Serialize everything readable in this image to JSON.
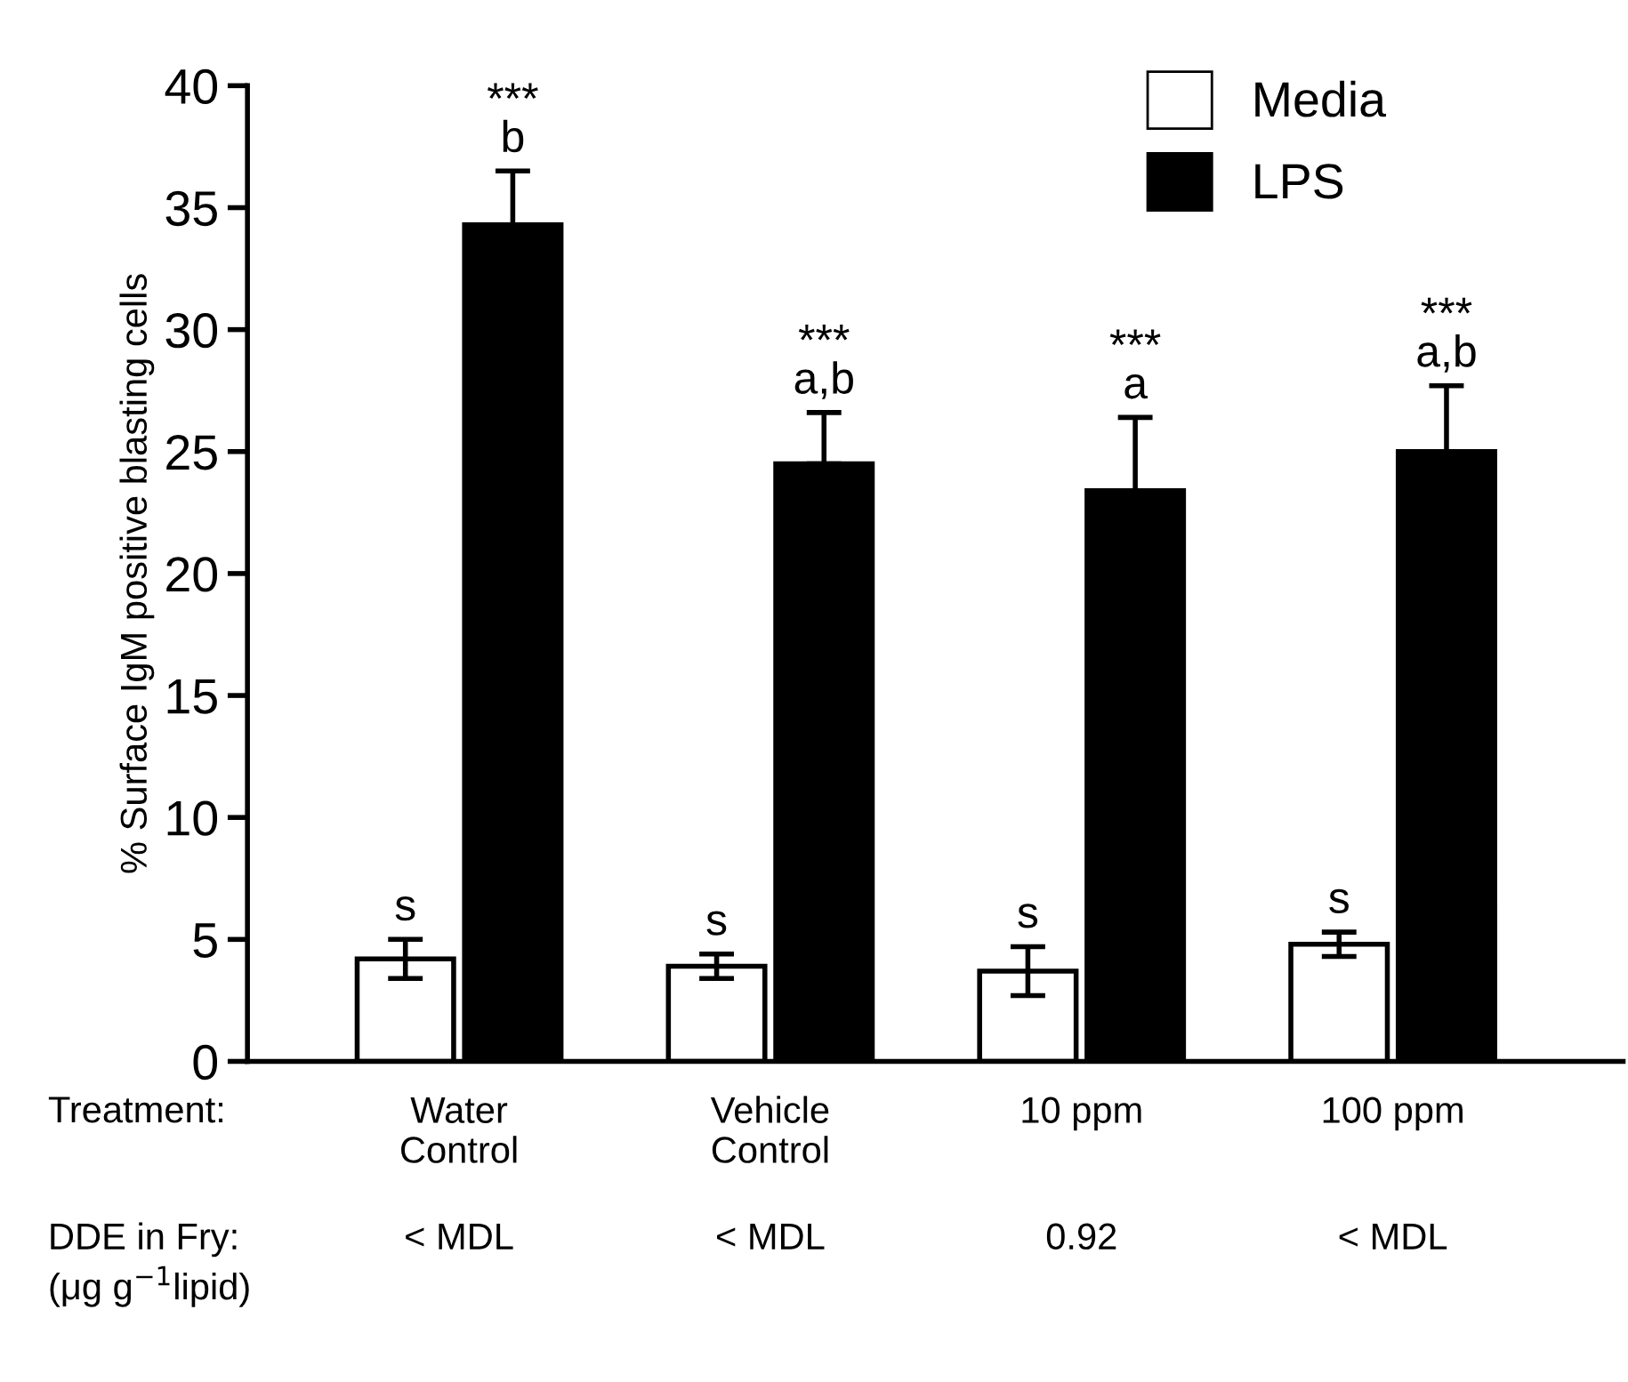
{
  "chart_data": {
    "type": "bar",
    "ylabel": "% Surface IgM positive blasting cells",
    "xlabel": "Treatment:",
    "categories": [
      "Water\nControl",
      "Vehicle\nControl",
      "10 ppm",
      "100 ppm"
    ],
    "series": [
      {
        "name": "Media",
        "color": "#ffffff",
        "values": [
          4.2,
          3.9,
          3.7,
          4.8
        ],
        "errors": [
          0.8,
          0.5,
          1.0,
          0.5
        ],
        "value_labels": [
          "s",
          "s",
          "s",
          "s"
        ]
      },
      {
        "name": "LPS",
        "color": "#000000",
        "values": [
          34.3,
          24.5,
          23.4,
          25.0
        ],
        "errors": [
          [
            34.3,
            36.5
          ],
          [
            24.5,
            26.6
          ],
          [
            23.4,
            26.4
          ],
          [
            25.0,
            27.7
          ]
        ],
        "value_labels": [
          "***\nb",
          "***\na,b",
          "***\na",
          "***\na,b"
        ]
      }
    ],
    "annotations": [
      "DDE in Fry:",
      "(μg g$^{−1}$lipid)",
      "< MDL",
      "< MDL",
      "0.92",
      "< MDL"
    ],
    "ylim": [
      0,
      40
    ],
    "yticks": [
      0,
      5,
      10,
      15,
      20,
      25,
      30,
      35,
      40
    ],
    "legend": "top right",
    "grid": false
  }
}
